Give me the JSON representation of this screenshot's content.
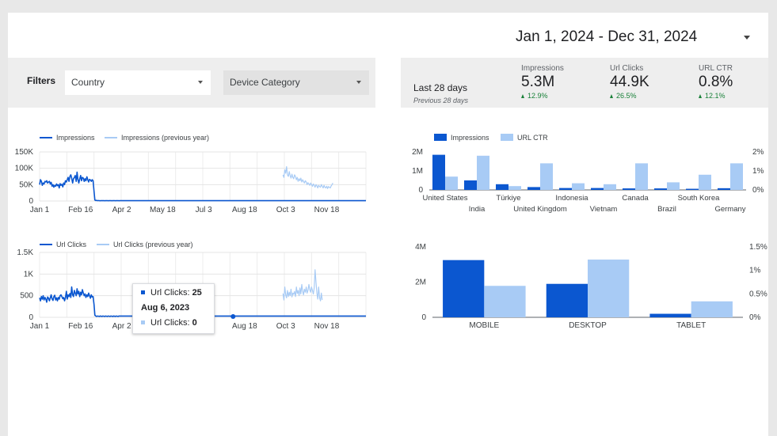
{
  "header": {
    "date_range": "Jan 1, 2024 - Dec 31, 2024"
  },
  "filters": {
    "label": "Filters",
    "country": {
      "value": "Country"
    },
    "device_category": {
      "value": "Device Category"
    }
  },
  "scorecard": {
    "period": "Last 28 days",
    "comparison": "Previous 28 days",
    "metrics": [
      {
        "label": "Impressions",
        "value": "5.3M",
        "delta": "12.9%"
      },
      {
        "label": "Url Clicks",
        "value": "44.9K",
        "delta": "26.5%"
      },
      {
        "label": "URL CTR",
        "value": "0.8%",
        "delta": "12.1%"
      }
    ]
  },
  "colors": {
    "primary": "#0b57d0",
    "secondary": "#a8cbf5",
    "positive": "#188038"
  },
  "tooltip": {
    "current_label": "Url Clicks:",
    "current_value": "25",
    "date": "Aug 6, 2023",
    "previous_label": "Url Clicks:",
    "previous_value": "0"
  },
  "chart_data": [
    {
      "type": "line",
      "legend": [
        "Impressions",
        "Impressions (previous year)"
      ],
      "x_ticks": [
        "Jan 1",
        "Feb 16",
        "Apr 2",
        "May 18",
        "Jul 3",
        "Aug 18",
        "Oct 3",
        "Nov 18"
      ],
      "y_ticks": [
        "150K",
        "100K",
        "50K",
        "0"
      ],
      "ylim": [
        0,
        150000
      ],
      "series": [
        {
          "name": "Impressions",
          "start_day": 0,
          "values": [
            50000,
            65000,
            60000,
            48000,
            55000,
            52000,
            60000,
            58000,
            62000,
            55000,
            58000,
            60000,
            52000,
            57000,
            45000,
            50000,
            42000,
            48000,
            45000,
            52000,
            47000,
            50000,
            40000,
            53000,
            48000,
            51000,
            43000,
            55000,
            50000,
            62000,
            58000,
            65000,
            72000,
            60000,
            75000,
            80000,
            70000,
            55000,
            68000,
            72000,
            78000,
            60000,
            88000,
            65000,
            55000,
            68000,
            78000,
            62000,
            72000,
            70000,
            60000,
            68000,
            62000,
            74000,
            65000,
            58000,
            66000,
            64000,
            60000,
            65000,
            62000,
            30000,
            3000,
            1500,
            2000,
            1000,
            1500,
            1000,
            800,
            1200,
            900,
            1000,
            1200,
            800,
            1000,
            900,
            1100,
            800,
            1000,
            900,
            1000,
            800,
            1000,
            900,
            1200,
            800,
            1000,
            900,
            1100,
            800,
            1000,
            900
          ]
        },
        {
          "name": "Impressions (previous year)",
          "start_day": 273,
          "values": [
            80000,
            72000,
            95000,
            85000,
            105000,
            80000,
            75000,
            90000,
            78000,
            70000,
            82000,
            72000,
            68000,
            80000,
            75000,
            65000,
            72000,
            60000,
            68000,
            62000,
            70000,
            58000,
            65000,
            60000,
            55000,
            62000,
            58000,
            50000,
            56000,
            52000,
            48000,
            55000,
            50000,
            45000,
            52000,
            48000,
            42000,
            50000,
            46000,
            40000,
            48000,
            44000,
            42000,
            50000,
            45000,
            40000,
            48000,
            42000,
            40000,
            45000,
            38000,
            44000,
            42000,
            40000,
            46000,
            50000,
            55000
          ]
        }
      ]
    },
    {
      "type": "line",
      "legend": [
        "Url Clicks",
        "Url Clicks (previous year)"
      ],
      "x_ticks": [
        "Jan 1",
        "Feb 16",
        "Apr 2",
        "May 18",
        "Jul 3",
        "Aug 18",
        "Oct 3",
        "Nov 18"
      ],
      "y_ticks": [
        "1.5K",
        "1K",
        "500",
        "0"
      ],
      "ylim": [
        0,
        1500
      ],
      "series": [
        {
          "name": "Url Clicks",
          "start_day": 0,
          "values": [
            450,
            380,
            480,
            420,
            500,
            400,
            460,
            420,
            350,
            470,
            440,
            380,
            450,
            520,
            420,
            390,
            480,
            510,
            400,
            450,
            380,
            460,
            420,
            500,
            520,
            480,
            430,
            460,
            380,
            450,
            600,
            420,
            520,
            480,
            550,
            460,
            700,
            520,
            480,
            620,
            560,
            500,
            660,
            540,
            600,
            480,
            580,
            520,
            640,
            560,
            500,
            540,
            460,
            520,
            480,
            560,
            500,
            440,
            520,
            470,
            480,
            300,
            50,
            30,
            20,
            30,
            25,
            20,
            30,
            25,
            20,
            30,
            25,
            20,
            30,
            25,
            20,
            30,
            25,
            20,
            30,
            25,
            20,
            30,
            25,
            20,
            30,
            25,
            20,
            30
          ]
        },
        {
          "name": "Url Clicks (previous year)",
          "start_day": 273,
          "values": [
            550,
            400,
            700,
            520,
            450,
            620,
            480,
            580,
            500,
            650,
            470,
            560,
            530,
            600,
            480,
            700,
            550,
            620,
            500,
            680,
            540,
            760,
            600,
            520,
            650,
            580,
            700,
            560,
            620,
            760,
            640,
            580,
            700,
            620,
            540,
            680,
            1100,
            800,
            560,
            420,
            700,
            450,
            380,
            560,
            400
          ]
        }
      ]
    },
    {
      "type": "bar",
      "legend": [
        "Impressions",
        "URL CTR"
      ],
      "categories": [
        "United States",
        "India",
        "Türkiye",
        "United Kingdom",
        "Indonesia",
        "Vietnam",
        "Canada",
        "Brazil",
        "South Korea",
        "Germany"
      ],
      "series": [
        {
          "name": "Impressions",
          "values": [
            1850000,
            500000,
            300000,
            150000,
            100000,
            100000,
            80000,
            80000,
            60000,
            90000
          ]
        },
        {
          "name": "URL CTR",
          "values": [
            0.7,
            1.8,
            0.2,
            1.4,
            0.35,
            0.3,
            1.4,
            0.4,
            0.8,
            1.4
          ]
        }
      ],
      "y_ticks": [
        "2M",
        "1M",
        "0"
      ],
      "y2_ticks": [
        "2%",
        "1%",
        "0%"
      ],
      "ylim": [
        0,
        2000000
      ],
      "y2lim": [
        0,
        2
      ]
    },
    {
      "type": "bar",
      "categories": [
        "MOBILE",
        "DESKTOP",
        "TABLET"
      ],
      "series": [
        {
          "name": "Impressions",
          "values": [
            3250000,
            1900000,
            200000
          ]
        },
        {
          "name": "URL CTR",
          "values": [
            0.67,
            1.23,
            0.34
          ]
        }
      ],
      "y_ticks": [
        "4M",
        "2M",
        "0"
      ],
      "y2_ticks": [
        "1.5%",
        "1%",
        "0.5%",
        "0%"
      ],
      "ylim": [
        0,
        4000000
      ],
      "y2lim": [
        0,
        1.5
      ]
    }
  ]
}
